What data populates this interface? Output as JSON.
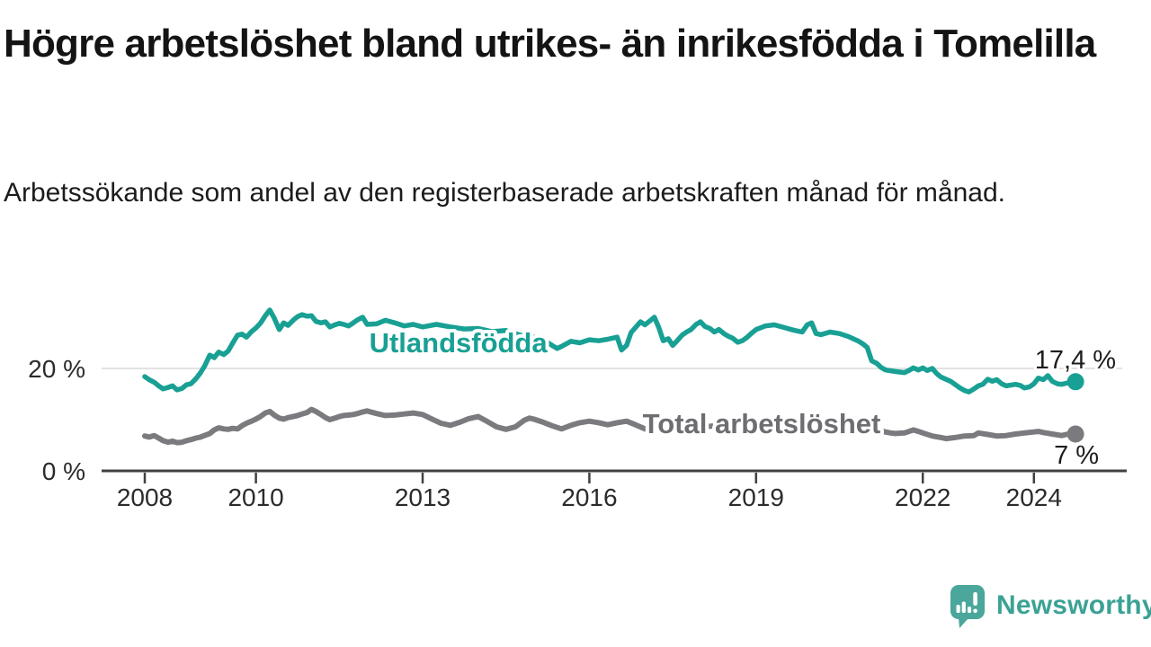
{
  "header": {
    "title": "Högre arbetslöshet bland utrikes- än inrikesfödda i Tomelilla",
    "subtitle": "Arbetssökande som andel av den registerbaserade arbetskraften månad för månad."
  },
  "chart_data": {
    "type": "line",
    "title": "Högre arbetslöshet bland utrikes- än inrikesfödda i Tomelilla",
    "subtitle": "Arbetssökande som andel av den registerbaserade arbetskraften månad för månad.",
    "unit": "%",
    "grid": "horizontal-20-only",
    "legend_position": "inline-on-line",
    "x_axis": {
      "ticks": [
        "2008",
        "2010",
        "2013",
        "2016",
        "2019",
        "2022",
        "2024"
      ],
      "tick_years": [
        2008,
        2010,
        2013,
        2016,
        2019,
        2022,
        2024
      ],
      "range_years": [
        2007.2,
        2025.7
      ]
    },
    "y_axis": {
      "ticks": [
        {
          "v": 0,
          "label": "0 %"
        },
        {
          "v": 20,
          "label": "20 %"
        }
      ],
      "range": [
        0,
        34
      ]
    },
    "series": [
      {
        "key": "total",
        "name": "Total arbetslöshet",
        "color": "#7b7b7f",
        "label_color": "#6e6e72",
        "end_value": 7.2,
        "end_label": "7 %",
        "label_anchor": {
          "year": 2019.1,
          "value": 9.3
        },
        "points": [
          [
            2008.0,
            6.8
          ],
          [
            2008.08,
            6.6
          ],
          [
            2008.17,
            6.9
          ],
          [
            2008.25,
            6.4
          ],
          [
            2008.33,
            5.9
          ],
          [
            2008.42,
            5.6
          ],
          [
            2008.5,
            5.8
          ],
          [
            2008.58,
            5.5
          ],
          [
            2008.67,
            5.6
          ],
          [
            2008.75,
            5.9
          ],
          [
            2008.83,
            6.1
          ],
          [
            2008.92,
            6.4
          ],
          [
            2009.0,
            6.6
          ],
          [
            2009.17,
            7.3
          ],
          [
            2009.25,
            8.0
          ],
          [
            2009.33,
            8.4
          ],
          [
            2009.42,
            8.2
          ],
          [
            2009.5,
            8.1
          ],
          [
            2009.58,
            8.3
          ],
          [
            2009.67,
            8.2
          ],
          [
            2009.75,
            8.8
          ],
          [
            2009.83,
            9.3
          ],
          [
            2009.92,
            9.7
          ],
          [
            2010.0,
            10.1
          ],
          [
            2010.08,
            10.6
          ],
          [
            2010.17,
            11.3
          ],
          [
            2010.25,
            11.6
          ],
          [
            2010.33,
            10.9
          ],
          [
            2010.42,
            10.3
          ],
          [
            2010.5,
            10.1
          ],
          [
            2010.58,
            10.4
          ],
          [
            2010.67,
            10.6
          ],
          [
            2010.75,
            10.8
          ],
          [
            2010.83,
            11.1
          ],
          [
            2010.92,
            11.4
          ],
          [
            2011.0,
            12.0
          ],
          [
            2011.08,
            11.6
          ],
          [
            2011.17,
            11.0
          ],
          [
            2011.25,
            10.4
          ],
          [
            2011.33,
            10.0
          ],
          [
            2011.42,
            10.3
          ],
          [
            2011.5,
            10.6
          ],
          [
            2011.58,
            10.8
          ],
          [
            2011.67,
            10.9
          ],
          [
            2011.75,
            11.0
          ],
          [
            2011.83,
            11.2
          ],
          [
            2011.92,
            11.5
          ],
          [
            2012.0,
            11.7
          ],
          [
            2012.17,
            11.2
          ],
          [
            2012.33,
            10.8
          ],
          [
            2012.5,
            10.9
          ],
          [
            2012.67,
            11.1
          ],
          [
            2012.83,
            11.3
          ],
          [
            2013.0,
            11.0
          ],
          [
            2013.17,
            10.1
          ],
          [
            2013.33,
            9.3
          ],
          [
            2013.5,
            8.9
          ],
          [
            2013.67,
            9.5
          ],
          [
            2013.83,
            10.2
          ],
          [
            2014.0,
            10.6
          ],
          [
            2014.17,
            9.6
          ],
          [
            2014.33,
            8.6
          ],
          [
            2014.5,
            8.1
          ],
          [
            2014.67,
            8.6
          ],
          [
            2014.83,
            9.9
          ],
          [
            2014.92,
            10.3
          ],
          [
            2015.0,
            10.1
          ],
          [
            2015.17,
            9.5
          ],
          [
            2015.33,
            8.8
          ],
          [
            2015.5,
            8.2
          ],
          [
            2015.67,
            8.9
          ],
          [
            2015.83,
            9.4
          ],
          [
            2016.0,
            9.7
          ],
          [
            2016.17,
            9.4
          ],
          [
            2016.33,
            9.0
          ],
          [
            2016.5,
            9.4
          ],
          [
            2016.67,
            9.7
          ],
          [
            2016.83,
            9.0
          ],
          [
            2017.0,
            8.2
          ],
          [
            2017.25,
            8.5
          ],
          [
            2017.5,
            8.7
          ],
          [
            2017.75,
            8.3
          ],
          [
            2018.0,
            8.5
          ],
          [
            2018.25,
            8.8
          ],
          [
            2018.5,
            8.4
          ],
          [
            2018.75,
            8.1
          ],
          [
            2019.0,
            8.3
          ],
          [
            2019.25,
            8.6
          ],
          [
            2019.5,
            8.2
          ],
          [
            2019.75,
            8.4
          ],
          [
            2020.0,
            8.7
          ],
          [
            2020.25,
            9.4
          ],
          [
            2020.5,
            9.6
          ],
          [
            2020.75,
            9.1
          ],
          [
            2021.0,
            8.6
          ],
          [
            2021.17,
            8.1
          ],
          [
            2021.33,
            7.6
          ],
          [
            2021.42,
            7.4
          ],
          [
            2021.5,
            7.3
          ],
          [
            2021.67,
            7.4
          ],
          [
            2021.83,
            8.0
          ],
          [
            2021.92,
            7.7
          ],
          [
            2022.0,
            7.4
          ],
          [
            2022.17,
            6.8
          ],
          [
            2022.33,
            6.5
          ],
          [
            2022.42,
            6.3
          ],
          [
            2022.58,
            6.5
          ],
          [
            2022.75,
            6.8
          ],
          [
            2022.92,
            6.9
          ],
          [
            2023.0,
            7.4
          ],
          [
            2023.17,
            7.1
          ],
          [
            2023.33,
            6.8
          ],
          [
            2023.5,
            6.9
          ],
          [
            2023.67,
            7.2
          ],
          [
            2023.83,
            7.4
          ],
          [
            2024.0,
            7.6
          ],
          [
            2024.08,
            7.7
          ],
          [
            2024.17,
            7.5
          ],
          [
            2024.33,
            7.2
          ],
          [
            2024.5,
            6.9
          ],
          [
            2024.58,
            7.1
          ],
          [
            2024.67,
            7.2
          ],
          [
            2024.75,
            7.2
          ]
        ]
      },
      {
        "key": "utlandsfodda",
        "name": "Utlandsfödda",
        "color": "#19a094",
        "label_color": "#19a094",
        "end_value": 17.4,
        "end_label": "17,4 %",
        "label_anchor": {
          "year": 2013.64,
          "value": 25.1
        },
        "points": [
          [
            2008.0,
            18.4
          ],
          [
            2008.08,
            17.8
          ],
          [
            2008.17,
            17.3
          ],
          [
            2008.25,
            16.6
          ],
          [
            2008.33,
            16.0
          ],
          [
            2008.42,
            16.3
          ],
          [
            2008.5,
            16.6
          ],
          [
            2008.58,
            15.8
          ],
          [
            2008.67,
            16.1
          ],
          [
            2008.75,
            16.8
          ],
          [
            2008.83,
            17.0
          ],
          [
            2008.92,
            18.0
          ],
          [
            2009.0,
            19.1
          ],
          [
            2009.08,
            20.5
          ],
          [
            2009.17,
            22.6
          ],
          [
            2009.25,
            22.1
          ],
          [
            2009.33,
            23.2
          ],
          [
            2009.42,
            22.7
          ],
          [
            2009.5,
            23.4
          ],
          [
            2009.58,
            24.9
          ],
          [
            2009.67,
            26.5
          ],
          [
            2009.75,
            26.7
          ],
          [
            2009.83,
            26.1
          ],
          [
            2009.92,
            27.2
          ],
          [
            2010.0,
            27.9
          ],
          [
            2010.08,
            28.8
          ],
          [
            2010.17,
            30.3
          ],
          [
            2010.25,
            31.4
          ],
          [
            2010.33,
            29.8
          ],
          [
            2010.42,
            27.6
          ],
          [
            2010.5,
            28.9
          ],
          [
            2010.58,
            28.4
          ],
          [
            2010.67,
            29.4
          ],
          [
            2010.75,
            30.1
          ],
          [
            2010.83,
            30.5
          ],
          [
            2010.92,
            30.2
          ],
          [
            2011.0,
            30.3
          ],
          [
            2011.08,
            29.2
          ],
          [
            2011.17,
            28.9
          ],
          [
            2011.25,
            29.1
          ],
          [
            2011.33,
            28.1
          ],
          [
            2011.42,
            28.5
          ],
          [
            2011.5,
            28.8
          ],
          [
            2011.58,
            28.6
          ],
          [
            2011.67,
            28.3
          ],
          [
            2011.75,
            28.9
          ],
          [
            2011.83,
            29.5
          ],
          [
            2011.92,
            30.0
          ],
          [
            2012.0,
            28.6
          ],
          [
            2012.17,
            28.7
          ],
          [
            2012.33,
            29.4
          ],
          [
            2012.5,
            28.9
          ],
          [
            2012.67,
            28.3
          ],
          [
            2012.83,
            28.6
          ],
          [
            2013.0,
            28.1
          ],
          [
            2013.25,
            28.6
          ],
          [
            2013.5,
            28.1
          ],
          [
            2013.75,
            27.7
          ],
          [
            2014.0,
            27.8
          ],
          [
            2014.25,
            27.2
          ],
          [
            2014.5,
            27.4
          ],
          [
            2014.75,
            26.5
          ],
          [
            2015.0,
            26.1
          ],
          [
            2015.17,
            25.6
          ],
          [
            2015.33,
            24.5
          ],
          [
            2015.42,
            23.9
          ],
          [
            2015.5,
            24.3
          ],
          [
            2015.67,
            25.3
          ],
          [
            2015.83,
            25.0
          ],
          [
            2016.0,
            25.6
          ],
          [
            2016.17,
            25.4
          ],
          [
            2016.33,
            25.7
          ],
          [
            2016.5,
            26.1
          ],
          [
            2016.58,
            23.6
          ],
          [
            2016.67,
            24.5
          ],
          [
            2016.75,
            27.0
          ],
          [
            2016.92,
            29.1
          ],
          [
            2017.0,
            28.5
          ],
          [
            2017.08,
            29.2
          ],
          [
            2017.17,
            30.0
          ],
          [
            2017.25,
            28.0
          ],
          [
            2017.33,
            25.4
          ],
          [
            2017.42,
            25.8
          ],
          [
            2017.5,
            24.5
          ],
          [
            2017.58,
            25.4
          ],
          [
            2017.67,
            26.5
          ],
          [
            2017.75,
            27.1
          ],
          [
            2017.83,
            27.6
          ],
          [
            2017.92,
            28.6
          ],
          [
            2018.0,
            29.1
          ],
          [
            2018.08,
            28.2
          ],
          [
            2018.17,
            27.8
          ],
          [
            2018.25,
            27.1
          ],
          [
            2018.33,
            27.6
          ],
          [
            2018.42,
            26.8
          ],
          [
            2018.5,
            26.3
          ],
          [
            2018.58,
            25.9
          ],
          [
            2018.67,
            25.1
          ],
          [
            2018.75,
            25.4
          ],
          [
            2018.83,
            26.0
          ],
          [
            2018.92,
            26.9
          ],
          [
            2019.0,
            27.6
          ],
          [
            2019.17,
            28.3
          ],
          [
            2019.33,
            28.5
          ],
          [
            2019.5,
            28.0
          ],
          [
            2019.67,
            27.5
          ],
          [
            2019.83,
            27.1
          ],
          [
            2019.92,
            28.5
          ],
          [
            2020.0,
            28.9
          ],
          [
            2020.08,
            26.8
          ],
          [
            2020.17,
            26.6
          ],
          [
            2020.33,
            27.1
          ],
          [
            2020.5,
            26.8
          ],
          [
            2020.67,
            26.2
          ],
          [
            2020.83,
            25.4
          ],
          [
            2020.92,
            24.8
          ],
          [
            2021.0,
            24.1
          ],
          [
            2021.08,
            21.5
          ],
          [
            2021.17,
            21.0
          ],
          [
            2021.25,
            20.2
          ],
          [
            2021.33,
            19.7
          ],
          [
            2021.5,
            19.4
          ],
          [
            2021.67,
            19.2
          ],
          [
            2021.75,
            19.6
          ],
          [
            2021.83,
            20.1
          ],
          [
            2021.92,
            19.7
          ],
          [
            2022.0,
            20.1
          ],
          [
            2022.08,
            19.6
          ],
          [
            2022.17,
            20.0
          ],
          [
            2022.25,
            19.0
          ],
          [
            2022.33,
            18.3
          ],
          [
            2022.5,
            17.5
          ],
          [
            2022.58,
            16.9
          ],
          [
            2022.67,
            16.2
          ],
          [
            2022.75,
            15.7
          ],
          [
            2022.83,
            15.4
          ],
          [
            2022.92,
            16.0
          ],
          [
            2023.0,
            16.6
          ],
          [
            2023.08,
            16.9
          ],
          [
            2023.17,
            17.9
          ],
          [
            2023.25,
            17.5
          ],
          [
            2023.33,
            17.8
          ],
          [
            2023.42,
            17.0
          ],
          [
            2023.5,
            16.6
          ],
          [
            2023.67,
            16.9
          ],
          [
            2023.75,
            16.7
          ],
          [
            2023.83,
            16.2
          ],
          [
            2023.92,
            16.4
          ],
          [
            2024.0,
            17.0
          ],
          [
            2024.08,
            18.1
          ],
          [
            2024.17,
            17.8
          ],
          [
            2024.25,
            18.6
          ],
          [
            2024.33,
            17.5
          ],
          [
            2024.42,
            17.0
          ],
          [
            2024.5,
            16.9
          ],
          [
            2024.58,
            17.1
          ],
          [
            2024.67,
            17.3
          ],
          [
            2024.75,
            17.4
          ]
        ]
      }
    ],
    "colors": {
      "grid": "#d9d9d9",
      "axis": "#404040",
      "tick_text": "#2b2b2b",
      "value_text": "#1d1d1d"
    }
  },
  "branding": {
    "wordmark": "Newsworthy",
    "logo_color": "#4ba69b",
    "wordmark_color": "#3ba295"
  }
}
